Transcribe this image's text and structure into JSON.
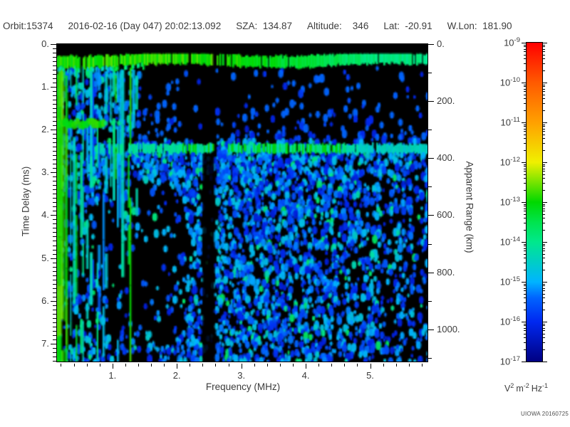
{
  "header": {
    "fields": [
      "Orbit:15374",
      "2016-02-16 (Day 047) 20:02:13.092",
      "SZA:  134.87",
      "Altitude:    346",
      "Lat:  -20.91",
      "W.Lon:  181.90"
    ]
  },
  "observation": {
    "orbit": "15374",
    "date": "2016-02-16",
    "day_of_year": "047",
    "time": "20:02:13.092",
    "sza_deg": "134.87",
    "altitude_km": "346",
    "lat_deg": "-20.91",
    "west_lon_deg": "181.90"
  },
  "watermark": "UIOWA 20160725",
  "chart_data": {
    "type": "heatmap",
    "subtype": "radar-sounder-ionogram-spectrogram",
    "title": "",
    "x_axis": {
      "label": "Frequency (MHz)",
      "range_mhz": [
        0.14,
        5.89
      ],
      "major_ticks": [
        {
          "value": 1,
          "label": "1."
        },
        {
          "value": 2,
          "label": "2."
        },
        {
          "value": 3,
          "label": "3."
        },
        {
          "value": 4,
          "label": "4."
        },
        {
          "value": 5,
          "label": "5."
        }
      ],
      "minor_tick_step_mhz": 0.2
    },
    "y_axis_left": {
      "label": "Time Delay (ms)",
      "range_ms": [
        0,
        7.42
      ],
      "major_ticks": [
        {
          "value": 0,
          "label": "0."
        },
        {
          "value": 1,
          "label": "1."
        },
        {
          "value": 2,
          "label": "2."
        },
        {
          "value": 3,
          "label": "3."
        },
        {
          "value": 4,
          "label": "4."
        },
        {
          "value": 5,
          "label": "5."
        },
        {
          "value": 6,
          "label": "6."
        },
        {
          "value": 7,
          "label": "7."
        }
      ],
      "minor_tick_step_ms": 0.1
    },
    "y_axis_right": {
      "label": "Apparent Range (km)",
      "range_km": [
        0,
        1113
      ],
      "major_ticks": [
        {
          "value": 0,
          "label": "0."
        },
        {
          "value": 200,
          "label": "200."
        },
        {
          "value": 400,
          "label": "400."
        },
        {
          "value": 600,
          "label": "600."
        },
        {
          "value": 800,
          "label": "800."
        },
        {
          "value": 1000,
          "label": "1000."
        }
      ],
      "minor_tick_step_km": 100
    },
    "colorbar": {
      "scale": "log10",
      "exponent_ticks": [
        -9,
        -10,
        -11,
        -12,
        -13,
        -14,
        -15,
        -16,
        -17
      ],
      "unit_parts": [
        {
          "base": "V",
          "exp": "2"
        },
        {
          "base": "m",
          "exp": "-2"
        },
        {
          "base": "Hz",
          "exp": "-1"
        }
      ],
      "stops": [
        {
          "u": 0.0,
          "color": "#000082"
        },
        {
          "u": 0.125,
          "color": "#0028f0"
        },
        {
          "u": 0.2,
          "color": "#0064ff"
        },
        {
          "u": 0.25,
          "color": "#00b4ff"
        },
        {
          "u": 0.375,
          "color": "#00e88c"
        },
        {
          "u": 0.435,
          "color": "#00e450"
        },
        {
          "u": 0.5,
          "color": "#00d800"
        },
        {
          "u": 0.625,
          "color": "#f0f000"
        },
        {
          "u": 0.75,
          "color": "#ffa000"
        },
        {
          "u": 0.875,
          "color": "#ff5a00"
        },
        {
          "u": 1.0,
          "color": "#ff0000"
        }
      ]
    },
    "features": [
      {
        "name": "quiet-strip-top",
        "time_delay_ms": [
          0,
          0.22
        ],
        "freq_mhz": [
          0.14,
          5.89
        ],
        "level": "below 1e-17 (black)"
      },
      {
        "name": "ionosphere-echo-band",
        "time_delay_ms": [
          0.25,
          0.55
        ],
        "freq_mhz": [
          0.14,
          5.89
        ],
        "level": "~1e-13 green, fading to ~1e-14 cyan above ~3 MHz"
      },
      {
        "name": "surface-reflection-band",
        "time_delay_ms": [
          2.35,
          2.55
        ],
        "apparent_range_km": 365,
        "freq_mhz": [
          0.7,
          5.89
        ],
        "level": "cyan ~1e-14 with green ~1e-13 cores between 2 and 4.5 MHz"
      },
      {
        "name": "plasma-harmonic-stripes",
        "freq_mhz": [
          0.14,
          1.38
        ],
        "time_delay_ms": [
          0.5,
          7.42
        ],
        "level": "vertical green/cyan lines, brightest below 0.65 MHz"
      },
      {
        "name": "interference-null-column",
        "freq_mhz": [
          2.4,
          2.6
        ],
        "time_delay_ms": [
          0.6,
          7.42
        ],
        "level": "near background (black)"
      },
      {
        "name": "diffuse-noise-speckle",
        "freq_mhz": [
          1.4,
          5.89
        ],
        "time_delay_ms": [
          2.3,
          7.42
        ],
        "level": "blue 1e-16..1e-15, density decreasing toward 5.5 MHz"
      },
      {
        "name": "quiet-zone-upper-right",
        "freq_mhz": [
          1.5,
          5.89
        ],
        "time_delay_ms": [
          0.6,
          2.2
        ],
        "level": "mostly black, sparse faint dark-blue dots"
      },
      {
        "name": "quiet-hole-lower-left",
        "freq_mhz": [
          0.65,
          2.2
        ],
        "time_delay_ms": [
          3.6,
          7.42
        ],
        "level": "sparse dots on black"
      },
      {
        "name": "green-patch-left",
        "freq_mhz": [
          0.14,
          0.9
        ],
        "time_delay_ms": [
          1.72,
          1.98
        ],
        "level": "~1e-13 green"
      }
    ],
    "render": {
      "seed": 20160216,
      "background": "#000000",
      "half_res": [
        260,
        223
      ],
      "quiet_top_ms": 0.22,
      "ionosphere_band": {
        "center_ms": 0.37,
        "halfwidth_ms": [
          0.1,
          0.16
        ],
        "green_u": 0.48,
        "cyan_u": 0.36,
        "cyan_start_mhz": 2.9,
        "notch_mhz": [
          2.5,
          2.78
        ]
      },
      "surface_band": {
        "center_ms": 2.44,
        "halfwidth_ms": [
          0.08,
          0.13
        ],
        "start_mhz": 0.7,
        "gap_mhz": [
          2.56,
          2.78
        ],
        "green_core_mhz": [
          2.0,
          4.55
        ]
      },
      "null_column_mhz": [
        2.4,
        2.58
      ],
      "stripes": {
        "f_start": 0.145,
        "f_end": 1.38,
        "bright_until_mhz": 0.66,
        "forced_green": [
          0.155,
          0.185,
          1.28
        ]
      },
      "hole": {
        "center": [
          1.35,
          5.2
        ],
        "radii": [
          0.95,
          2.3
        ]
      },
      "green_patch": {
        "ms": [
          1.72,
          1.98
        ],
        "mhz": [
          0.14,
          0.9
        ],
        "u": 0.5
      },
      "speckle": {
        "cell": 2.3,
        "base_density": 0.5,
        "upper_density": 0.32,
        "quiet_density": 0.05
      }
    }
  }
}
